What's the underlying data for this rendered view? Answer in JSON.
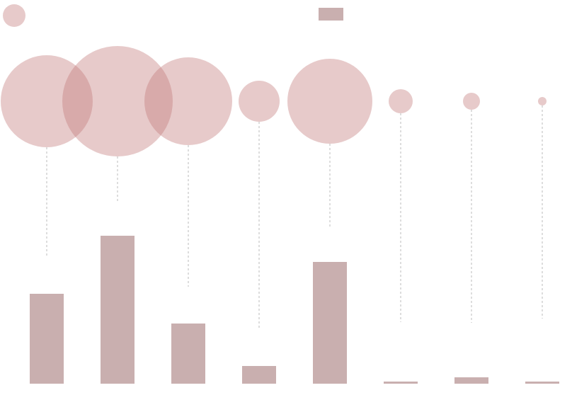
{
  "chart_data": {
    "type": "bar",
    "categories": [
      null,
      null,
      null,
      null,
      null,
      null,
      null,
      null
    ],
    "ylim": [
      0,
      542
    ],
    "series": [
      {
        "type": "bar",
        "color": "#c9afaf",
        "values": [
          127,
          209,
          85,
          25,
          172,
          3,
          9,
          3
        ]
      },
      {
        "type": "bubble",
        "color": "#c27a7a",
        "values": [
          179,
          257,
          137,
          79,
          222,
          87,
          86,
          92
        ],
        "sizes": [
          65,
          78,
          62,
          29,
          60,
          17,
          12,
          6
        ]
      }
    ]
  }
}
